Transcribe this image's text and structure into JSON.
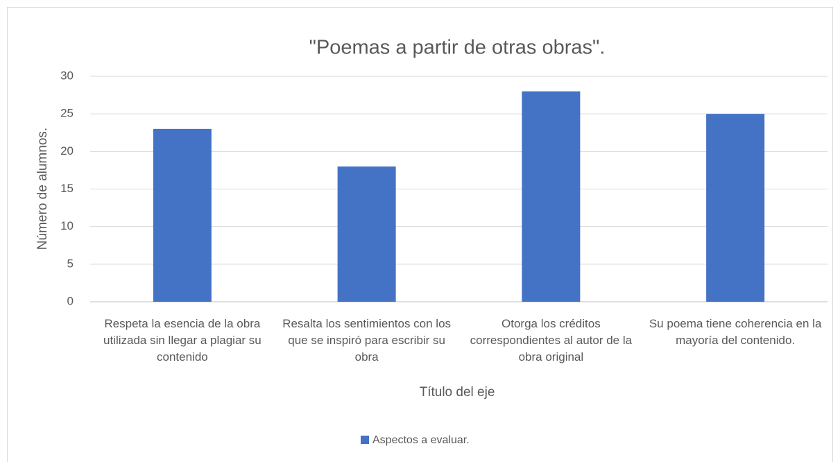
{
  "chart_data": {
    "type": "bar",
    "title": "\"Poemas a partir de otras obras\".",
    "y_label": "Número de alumnos.",
    "x_label": "Título del eje",
    "categories": [
      "Respeta la esencia de la obra utilizada sin llegar a plagiar su contenido",
      "Resalta los sentimientos con los que se inspiró para escribir su obra",
      "Otorga los créditos correspondientes al autor de la obra original",
      "Su poema tiene coherencia en la mayoría del contenido."
    ],
    "series": [
      {
        "name": "Aspectos a evaluar.",
        "color": "#4472c4",
        "values": [
          23,
          18,
          28,
          25
        ]
      }
    ],
    "ylim": [
      0,
      30
    ],
    "yticks": [
      0,
      5,
      10,
      15,
      20,
      25,
      30
    ],
    "grid": true,
    "legend": "bottom"
  }
}
